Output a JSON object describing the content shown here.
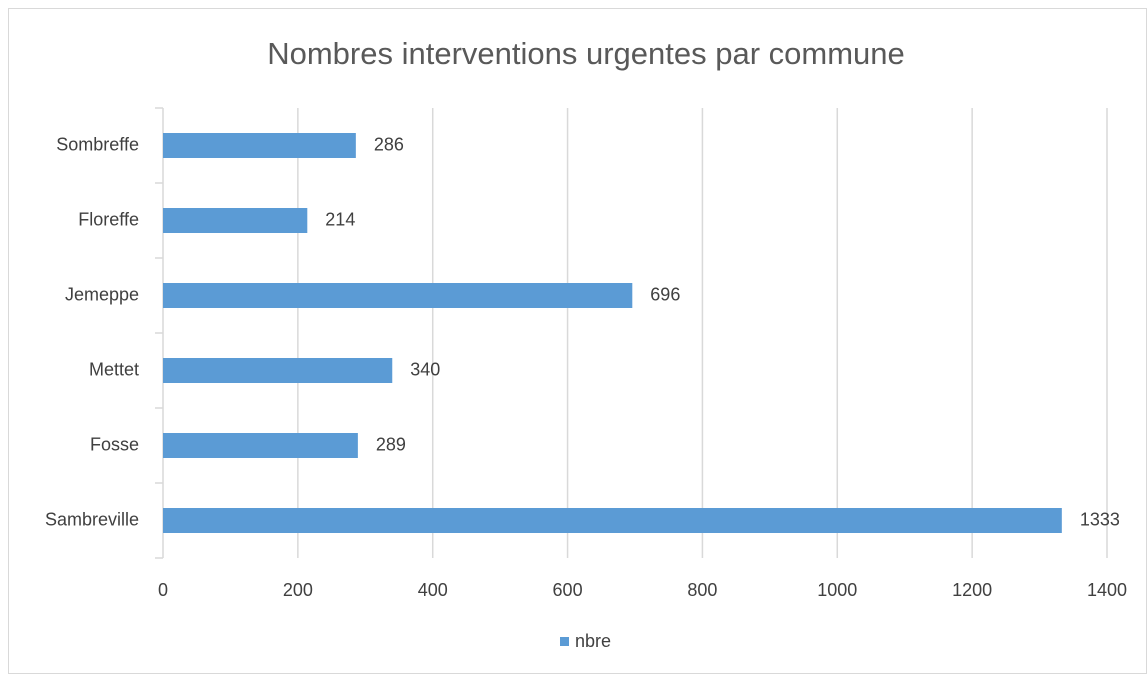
{
  "chart_data": {
    "type": "bar",
    "orientation": "horizontal",
    "title": "Nombres interventions urgentes par commune",
    "categories": [
      "Sambreville",
      "Fosse",
      "Mettet",
      "Jemeppe",
      "Floreffe",
      "Sombreffe"
    ],
    "series": [
      {
        "name": "nbre",
        "color": "#5b9bd5",
        "values": [
          1333,
          289,
          340,
          696,
          214,
          286
        ]
      }
    ],
    "xlim": [
      0,
      1400
    ],
    "xticks": [
      0,
      200,
      400,
      600,
      800,
      1000,
      1200,
      1400
    ],
    "grid": true,
    "legend": "bottom"
  }
}
